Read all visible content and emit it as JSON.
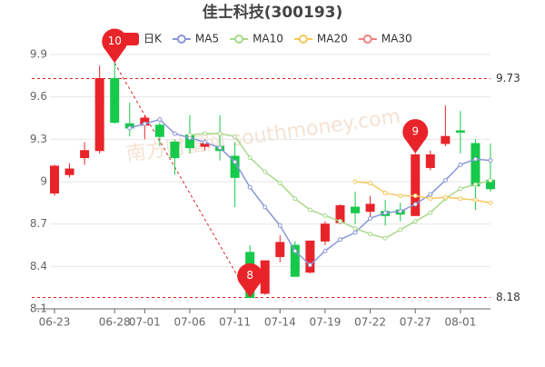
{
  "chart_data": {
    "type": "candlestick",
    "title": "佳士科技(300193)",
    "categories": [
      "06-23",
      null,
      null,
      null,
      "06-28",
      null,
      "07-01",
      null,
      null,
      "07-06",
      null,
      null,
      "07-11",
      null,
      null,
      "07-14",
      null,
      null,
      "07-19",
      null,
      null,
      "07-22",
      null,
      null,
      "07-27",
      null,
      null,
      "08-01",
      null,
      null
    ],
    "series": [
      {
        "name": "日K",
        "up_color": "#e8242a",
        "down_color": "#16c94a",
        "open": [
          8.92,
          9.05,
          9.17,
          9.22,
          9.73,
          9.41,
          9.4,
          9.4,
          9.28,
          9.33,
          9.25,
          9.25,
          9.18,
          8.5,
          8.21,
          8.47,
          8.55,
          8.36,
          8.58,
          8.71,
          8.82,
          8.79,
          8.79,
          8.8,
          8.76,
          9.1,
          9.27,
          9.36,
          9.27,
          9.01
        ],
        "close": [
          9.11,
          9.09,
          9.22,
          9.73,
          9.42,
          9.38,
          9.45,
          9.32,
          9.17,
          9.24,
          9.27,
          9.22,
          9.03,
          8.18,
          8.44,
          8.57,
          8.33,
          8.58,
          8.7,
          8.83,
          8.78,
          8.84,
          8.76,
          8.77,
          9.19,
          9.19,
          9.32,
          9.35,
          8.97,
          8.95
        ],
        "high": [
          9.12,
          9.13,
          9.28,
          9.82,
          9.84,
          9.56,
          9.47,
          9.42,
          9.3,
          9.47,
          9.3,
          9.47,
          9.28,
          8.55,
          8.44,
          8.62,
          8.58,
          8.58,
          8.72,
          8.84,
          8.93,
          8.9,
          8.87,
          8.85,
          9.2,
          9.22,
          9.54,
          9.5,
          9.3,
          9.27
        ],
        "low": [
          8.9,
          9.03,
          9.12,
          9.2,
          9.41,
          9.32,
          9.3,
          9.25,
          9.05,
          9.2,
          9.22,
          9.15,
          8.82,
          8.18,
          8.2,
          8.43,
          8.33,
          8.35,
          8.55,
          8.7,
          8.7,
          8.74,
          8.69,
          8.72,
          8.76,
          9.08,
          9.25,
          9.2,
          8.8,
          8.93
        ]
      },
      {
        "name": "MA5",
        "color": "#8a97d8",
        "values": [
          null,
          null,
          null,
          null,
          null,
          9.38,
          9.41,
          9.44,
          9.34,
          9.31,
          9.28,
          9.24,
          9.14,
          8.96,
          8.82,
          8.69,
          8.51,
          8.41,
          8.51,
          8.59,
          8.64,
          8.74,
          8.78,
          8.79,
          8.84,
          8.91,
          9.01,
          9.12,
          9.16,
          9.15
        ]
      },
      {
        "name": "MA10",
        "color": "#a8d98a",
        "values": [
          null,
          null,
          null,
          null,
          null,
          null,
          null,
          null,
          null,
          9.33,
          9.34,
          9.34,
          9.32,
          9.17,
          9.07,
          8.99,
          8.88,
          8.8,
          8.76,
          8.72,
          8.67,
          8.63,
          8.6,
          8.66,
          8.72,
          8.78,
          8.88,
          8.95,
          8.98,
          9.01
        ]
      },
      {
        "name": "MA20",
        "color": "#f5c85c",
        "values": [
          null,
          null,
          null,
          null,
          null,
          null,
          null,
          null,
          null,
          null,
          null,
          null,
          null,
          null,
          null,
          null,
          null,
          null,
          null,
          null,
          9.0,
          8.99,
          8.92,
          8.9,
          8.9,
          8.88,
          8.89,
          8.88,
          8.87,
          8.85
        ]
      },
      {
        "name": "MA30",
        "color": "#f08080",
        "values": [
          null,
          null,
          null,
          null,
          null,
          null,
          null,
          null,
          null,
          null,
          null,
          null,
          null,
          null,
          null,
          null,
          null,
          null,
          null,
          null,
          null,
          null,
          null,
          null,
          null,
          null,
          null,
          null,
          null,
          null
        ]
      }
    ],
    "markers": [
      {
        "label": "10",
        "x": 4,
        "value": 9.84
      },
      {
        "label": "9",
        "x": 24,
        "value": 9.2
      },
      {
        "label": "8",
        "x": 13,
        "value": 8.18
      }
    ],
    "ref_lines": [
      9.73,
      8.18
    ],
    "watermark": "南方财富网 southmoney.com",
    "ylim": [
      8.1,
      9.9
    ],
    "yticks": [
      8.1,
      8.4,
      8.7,
      9,
      9.3,
      9.6,
      9.9
    ],
    "grid": true
  }
}
